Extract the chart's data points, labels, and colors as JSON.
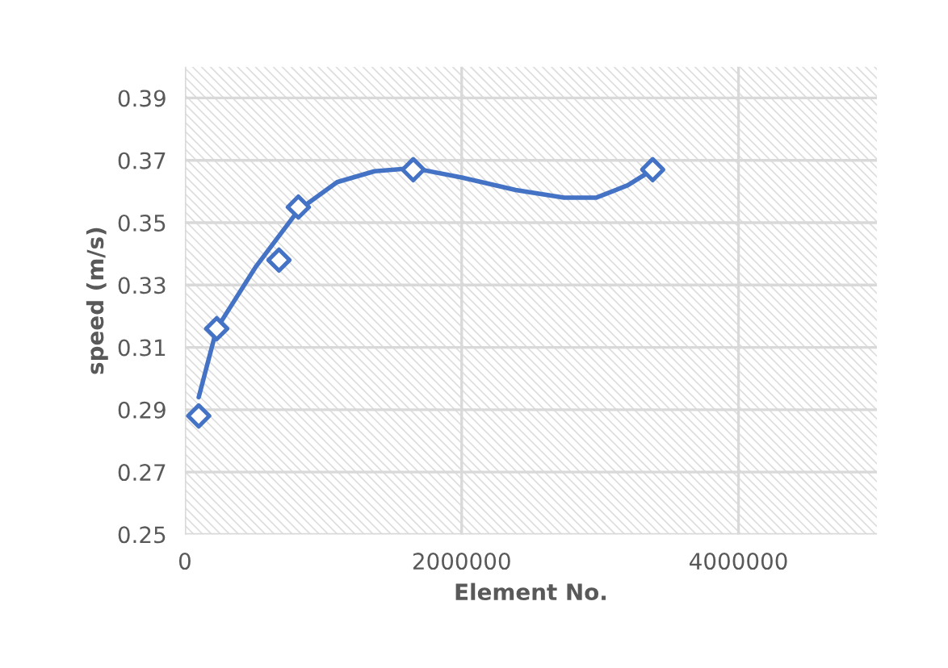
{
  "chart_data": {
    "type": "scatter",
    "xlabel": "Element No.",
    "ylabel": "speed (m/s)",
    "xlim": [
      0,
      5000000
    ],
    "xticks": [
      0,
      2000000,
      4000000
    ],
    "ylim": [
      0.25,
      0.4
    ],
    "yticks": [
      0.25,
      0.27,
      0.29,
      0.31,
      0.33,
      0.35,
      0.37,
      0.39
    ],
    "grid": true,
    "legend": false,
    "marker": "diamond",
    "series": [
      {
        "color": "#4472c4",
        "x": [
          100000,
          230000,
          680000,
          820000,
          1650000,
          3380000
        ],
        "values": [
          0.288,
          0.316,
          0.338,
          0.355,
          0.367,
          0.367
        ]
      },
      {
        "type": "line",
        "color": "#4472c4",
        "marker": "none",
        "line_style": "solid",
        "x": [
          100000,
          230000,
          515000,
          820000,
          1100000,
          1370000,
          1650000,
          2000000,
          2390000,
          2740000,
          2970000,
          3200000,
          3380000
        ],
        "values": [
          0.294,
          0.316,
          0.336,
          0.354,
          0.363,
          0.3665,
          0.3675,
          0.3645,
          0.3605,
          0.358,
          0.358,
          0.362,
          0.367
        ]
      }
    ]
  }
}
